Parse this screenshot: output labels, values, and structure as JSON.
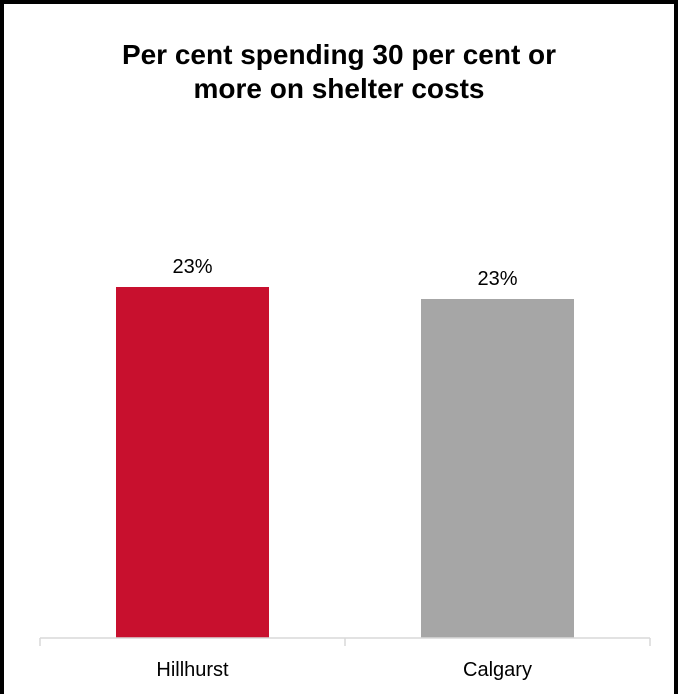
{
  "chart_data": {
    "type": "bar",
    "title_lines": [
      "Per cent spending 30 per cent or",
      "more on shelter costs"
    ],
    "categories": [
      "Hillhurst",
      "Calgary"
    ],
    "values": [
      23.4,
      22.6
    ],
    "data_labels": [
      "23%",
      "23%"
    ],
    "colors": [
      "#C8102E",
      "#A6A6A6"
    ],
    "ylim": [
      0,
      40
    ],
    "grid": false,
    "legend": false
  }
}
